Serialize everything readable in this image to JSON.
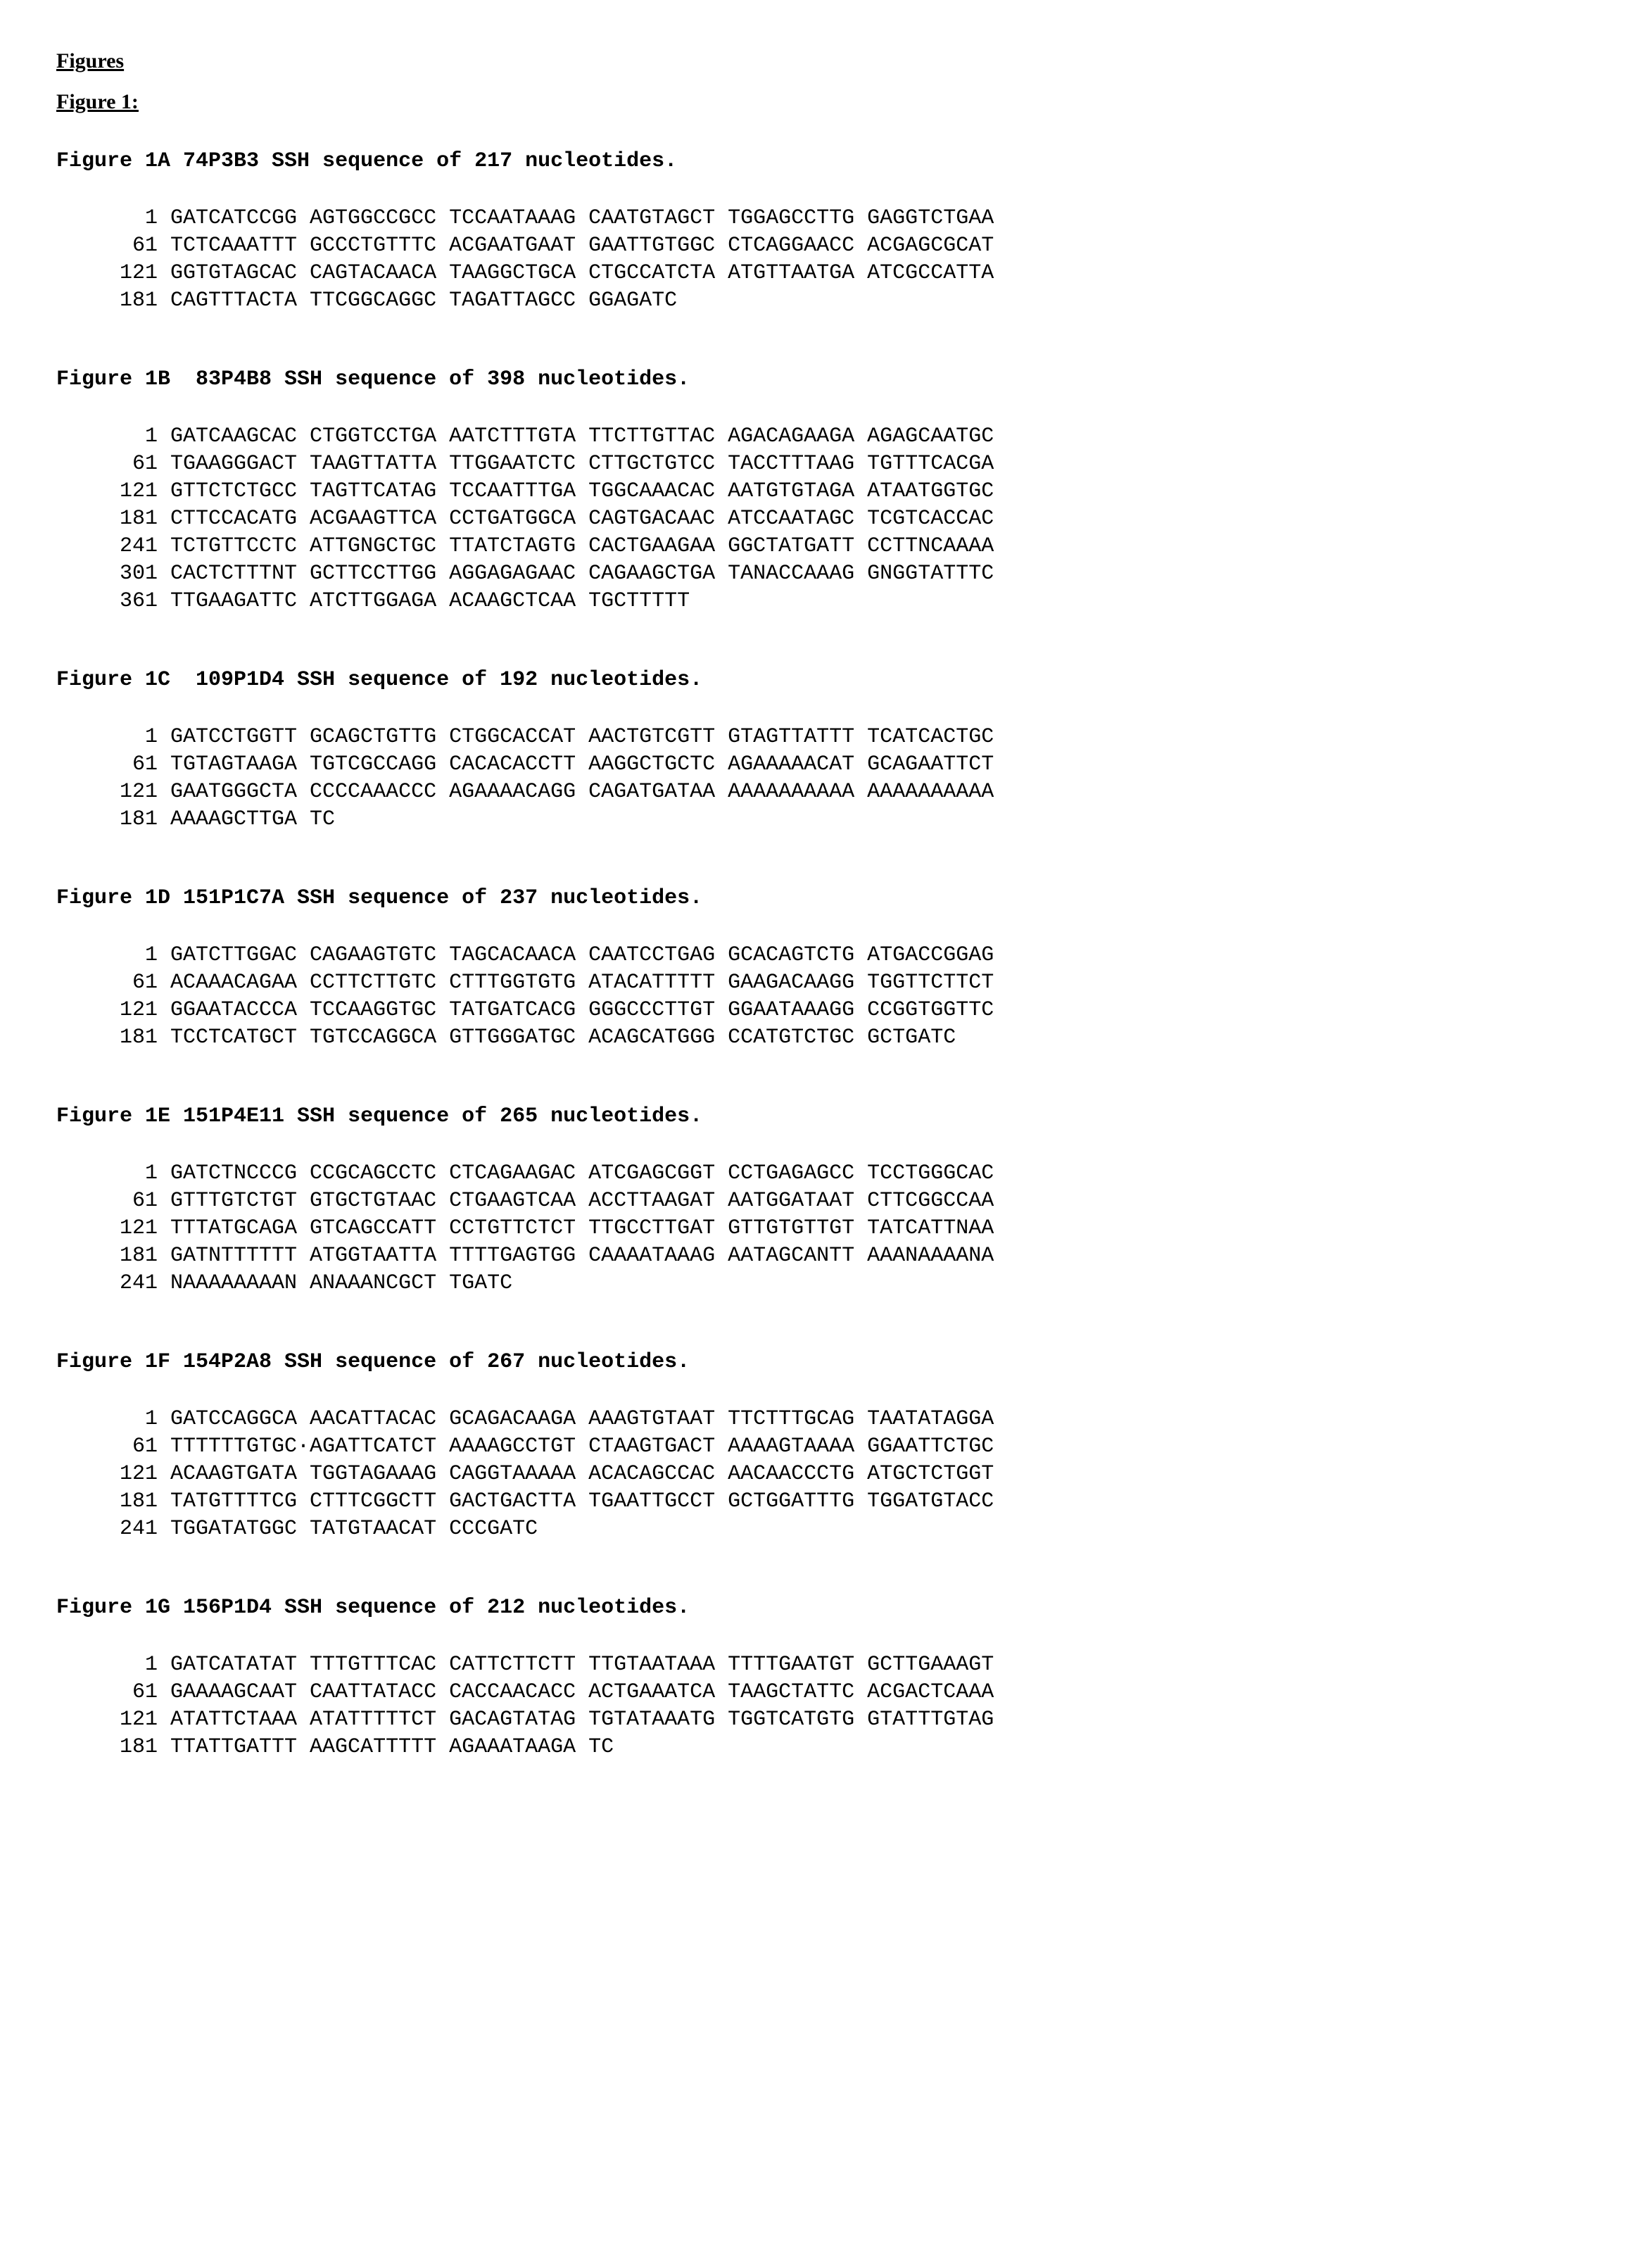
{
  "headings": {
    "figures": "Figures",
    "figure1": "Figure 1:"
  },
  "font": {
    "heading_family": "Times New Roman",
    "seq_family": "Courier New",
    "heading_size_pt": 22,
    "seq_size_pt": 22,
    "title_weight": "bold"
  },
  "colors": {
    "text": "#000000",
    "background": "#ffffff"
  },
  "sequences": [
    {
      "id": "1A",
      "title": "Figure 1A 74P3B3 SSH sequence of 217 nucleotides.",
      "lines": [
        {
          "pos": 1,
          "chunks": [
            "GATCATCCGG",
            "AGTGGCCGCC",
            "TCCAATAAAG",
            "CAATGTAGCT",
            "TGGAGCCTTG",
            "GAGGTCTGAA"
          ]
        },
        {
          "pos": 61,
          "chunks": [
            "TCTCAAATTT",
            "GCCCTGTTTC",
            "ACGAATGAAT",
            "GAATTGTGGC",
            "CTCAGGAACC",
            "ACGAGCGCAT"
          ]
        },
        {
          "pos": 121,
          "chunks": [
            "GGTGTAGCAC",
            "CAGTACAACA",
            "TAAGGCTGCA",
            "CTGCCATCTA",
            "ATGTTAATGA",
            "ATCGCCATTA"
          ]
        },
        {
          "pos": 181,
          "chunks": [
            "CAGTTTACTA",
            "TTCGGCAGGC",
            "TAGATTAGCC",
            "GGAGATC"
          ]
        }
      ]
    },
    {
      "id": "1B",
      "title": "Figure 1B  83P4B8 SSH sequence of 398 nucleotides.",
      "lines": [
        {
          "pos": 1,
          "chunks": [
            "GATCAAGCAC",
            "CTGGTCCTGA",
            "AATCTTTGTA",
            "TTCTTGTTAC",
            "AGACAGAAGA",
            "AGAGCAATGC"
          ]
        },
        {
          "pos": 61,
          "chunks": [
            "TGAAGGGACT",
            "TAAGTTATTA",
            "TTGGAATCTC",
            "CTTGCTGTCC",
            "TACCTTTAAG",
            "TGTTTCACGA"
          ]
        },
        {
          "pos": 121,
          "chunks": [
            "GTTCTCTGCC",
            "TAGTTCATAG",
            "TCCAATTTGA",
            "TGGCAAACAC",
            "AATGTGTAGA",
            "ATAATGGTGC"
          ]
        },
        {
          "pos": 181,
          "chunks": [
            "CTTCCACATG",
            "ACGAAGTTCA",
            "CCTGATGGCA",
            "CAGTGACAAC",
            "ATCCAATAGC",
            "TCGTCACCAC"
          ]
        },
        {
          "pos": 241,
          "chunks": [
            "TCTGTTCCTC",
            "ATTGNGCTGC",
            "TTATCTAGTG",
            "CACTGAAGAA",
            "GGCTATGATT",
            "CCTTNCAAAA"
          ]
        },
        {
          "pos": 301,
          "chunks": [
            "CACTCTTTNT",
            "GCTTCCTTGG",
            "AGGAGAGAAC",
            "CAGAAGCTGA",
            "TANACCAAAG",
            "GNGGTATTTC"
          ]
        },
        {
          "pos": 361,
          "chunks": [
            "TTGAAGATTC",
            "ATCTTGGAGA",
            "ACAAGCTCAA",
            "TGCTTTTT"
          ]
        }
      ]
    },
    {
      "id": "1C",
      "title": "Figure 1C  109P1D4 SSH sequence of 192 nucleotides.",
      "lines": [
        {
          "pos": 1,
          "chunks": [
            "GATCCTGGTT",
            "GCAGCTGTTG",
            "CTGGCACCAT",
            "AACTGTCGTT",
            "GTAGTTATTT",
            "TCATCACTGC"
          ]
        },
        {
          "pos": 61,
          "chunks": [
            "TGTAGTAAGA",
            "TGTCGCCAGG",
            "CACACACCTT",
            "AAGGCTGCTC",
            "AGAAAAACAT",
            "GCAGAATTCT"
          ]
        },
        {
          "pos": 121,
          "chunks": [
            "GAATGGGCTA",
            "CCCCAAACCC",
            "AGAAAACAGG",
            "CAGATGATAA",
            "AAAAAAAAAA",
            "AAAAAAAAAA"
          ]
        },
        {
          "pos": 181,
          "chunks": [
            "AAAAGCTTGA",
            "TC"
          ]
        }
      ]
    },
    {
      "id": "1D",
      "title": "Figure 1D 151P1C7A SSH sequence of 237 nucleotides.",
      "lines": [
        {
          "pos": 1,
          "chunks": [
            "GATCTTGGAC",
            "CAGAAGTGTC",
            "TAGCACAACA",
            "CAATCCTGAG",
            "GCACAGTCTG",
            "ATGACCGGAG"
          ]
        },
        {
          "pos": 61,
          "chunks": [
            "ACAAACAGAA",
            "CCTTCTTGTC",
            "CTTTGGTGTG",
            "ATACATTTTT",
            "GAAGACAAGG",
            "TGGTTCTTCT"
          ]
        },
        {
          "pos": 121,
          "chunks": [
            "GGAATACCCA",
            "TCCAAGGTGC",
            "TATGATCACG",
            "GGGCCCTTGT",
            "GGAATAAAGG",
            "CCGGTGGTTC"
          ]
        },
        {
          "pos": 181,
          "chunks": [
            "TCCTCATGCT",
            "TGTCCAGGCA",
            "GTTGGGATGC",
            "ACAGCATGGG",
            "CCATGTCTGC",
            "GCTGATC"
          ]
        }
      ]
    },
    {
      "id": "1E",
      "title": "Figure 1E 151P4E11 SSH sequence of 265 nucleotides.",
      "lines": [
        {
          "pos": 1,
          "chunks": [
            "GATCTNCCCG",
            "CCGCAGCCTC",
            "CTCAGAAGAC",
            "ATCGAGCGGT",
            "CCTGAGAGCC",
            "TCCTGGGCAC"
          ]
        },
        {
          "pos": 61,
          "chunks": [
            "GTTTGTCTGT",
            "GTGCTGTAAC",
            "CTGAAGTCAA",
            "ACCTTAAGAT",
            "AATGGATAAT",
            "CTTCGGCCAA"
          ]
        },
        {
          "pos": 121,
          "chunks": [
            "TTTATGCAGA",
            "GTCAGCCATT",
            "CCTGTTCTCT",
            "TTGCCTTGAT",
            "GTTGTGTTGT",
            "TATCATTNAA"
          ]
        },
        {
          "pos": 181,
          "chunks": [
            "GATNTTTTTT",
            "ATGGTAATTA",
            "TTTTGAGTGG",
            "CAAAATAAAG",
            "AATAGCANTT",
            "AAANAAAANA"
          ]
        },
        {
          "pos": 241,
          "chunks": [
            "NAAAAAAAAN",
            "ANAAANCGCT",
            "TGATC"
          ]
        }
      ]
    },
    {
      "id": "1F",
      "title": "Figure 1F 154P2A8 SSH sequence of 267 nucleotides.",
      "lines": [
        {
          "pos": 1,
          "chunks": [
            "GATCCAGGCA",
            "AACATTACAC",
            "GCAGACAAGA",
            "AAAGTGTAAT",
            "TTCTTTGCAG",
            "TAATATAGGA"
          ]
        },
        {
          "pos": 61,
          "chunks": [
            "TTTTTTGTGC·AGATTCATCT",
            "AAAAGCCTGT",
            "CTAAGTGACT",
            "AAAAGTAAAA",
            "GGAATTCTGC"
          ]
        },
        {
          "pos": 121,
          "chunks": [
            "ACAAGTGATA",
            "TGGTAGAAAG",
            "CAGGTAAAAA",
            "ACACAGCCAC",
            "AACAACCCTG",
            "ATGCTCTGGT"
          ]
        },
        {
          "pos": 181,
          "chunks": [
            "TATGTTTTCG",
            "CTTTCGGCTT",
            "GACTGACTTA",
            "TGAATTGCCT",
            "GCTGGATTTG",
            "TGGATGTACC"
          ]
        },
        {
          "pos": 241,
          "chunks": [
            "TGGATATGGC",
            "TATGTAACAT",
            "CCCGATC"
          ]
        }
      ]
    },
    {
      "id": "1G",
      "title": "Figure 1G 156P1D4 SSH sequence of 212 nucleotides.",
      "lines": [
        {
          "pos": 1,
          "chunks": [
            "GATCATATAT",
            "TTTGTTTCAC",
            "CATTCTTCTT",
            "TTGTAATAAA",
            "TTTTGAATGT",
            "GCTTGAAAGT"
          ]
        },
        {
          "pos": 61,
          "chunks": [
            "GAAAAGCAAT",
            "CAATTATACC",
            "CACCAACACC",
            "ACTGAAATCA",
            "TAAGCTATTC",
            "ACGACTCAAA"
          ]
        },
        {
          "pos": 121,
          "chunks": [
            "ATATTCTAAA",
            "ATATTTTTCT",
            "GACAGTATAG",
            "TGTATAAATG",
            "TGGTCATGTG",
            "GTATTTGTAG"
          ]
        },
        {
          "pos": 181,
          "chunks": [
            "TTATTGATTT",
            "AAGCATTTTT",
            "AGAAATAAGA",
            "TC"
          ]
        }
      ]
    }
  ]
}
